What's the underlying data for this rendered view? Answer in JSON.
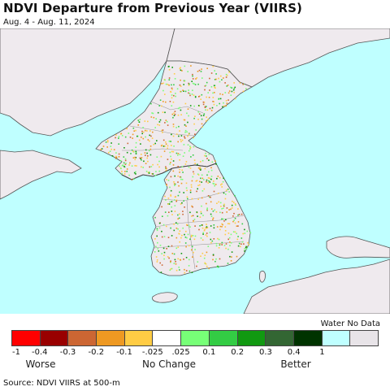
{
  "header": {
    "title": "NDVI Departure from Previous Year (VIIRS)",
    "date_range": "Aug. 4 - Aug. 11, 2024"
  },
  "map": {
    "sea_color": "#bfffff",
    "land_color": "#efeaee",
    "border_color": "#888888"
  },
  "legend": {
    "water_label": "Water No Data",
    "swatches": [
      {
        "color": "#ff0000"
      },
      {
        "color": "#990000"
      },
      {
        "color": "#cc6633"
      },
      {
        "color": "#ee9922"
      },
      {
        "color": "#ffcc44"
      },
      {
        "color": "#ffffff"
      },
      {
        "color": "#77ff77"
      },
      {
        "color": "#33cc44"
      },
      {
        "color": "#119911"
      },
      {
        "color": "#336633"
      },
      {
        "color": "#003300"
      },
      {
        "color": "#bfffff"
      },
      {
        "color": "#e8e4e8"
      }
    ],
    "ticks": [
      "-1",
      "-0.4",
      "-0.3",
      "-0.2",
      "-0.1",
      "-.025",
      ".025",
      "0.1",
      "0.2",
      "0.3",
      "0.4",
      "1"
    ],
    "words": {
      "worse": "Worse",
      "no_change": "No Change",
      "better": "Better"
    }
  },
  "footer": {
    "source": "Source: NDVI VIIRS at 500-m"
  }
}
